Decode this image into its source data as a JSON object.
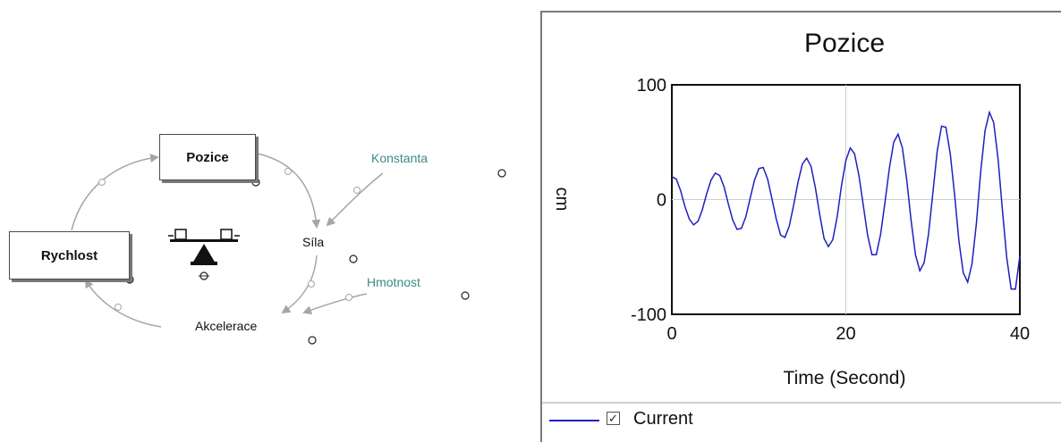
{
  "diagram": {
    "stocks": {
      "pozice": "Pozice",
      "rychlost": "Rychlost"
    },
    "variables": {
      "sila": "Síla",
      "akcelerace": "Akcelerace",
      "konstanta": "Konstanta",
      "hmotnost": "Hmotnost"
    },
    "colors": {
      "arrow": "#a6a6a6",
      "constant_text": "#3c8a8a"
    }
  },
  "graph": {
    "legend": {
      "label": "Current",
      "checked": true
    },
    "chart_data": {
      "type": "line",
      "title": "Pozice",
      "xlabel": "Time (Second)",
      "ylabel": "cm",
      "xlim": [
        0,
        40
      ],
      "ylim": [
        -100,
        100
      ],
      "xticks": [
        "0",
        "20",
        "40"
      ],
      "yticks": [
        "100",
        "0",
        "-100"
      ],
      "grid": "center-lines",
      "series": [
        {
          "name": "Current",
          "color": "#1f1fbf",
          "x": [
            0,
            0.5,
            1,
            1.5,
            2,
            2.5,
            3,
            3.5,
            4,
            4.5,
            5,
            5.5,
            6,
            6.5,
            7,
            7.5,
            8,
            8.5,
            9,
            9.5,
            10,
            10.5,
            11,
            11.5,
            12,
            12.5,
            13,
            13.5,
            14,
            14.5,
            15,
            15.5,
            16,
            16.5,
            17,
            17.5,
            18,
            18.5,
            19,
            19.5,
            20,
            20.5,
            21,
            21.5,
            22,
            22.5,
            23,
            23.5,
            24,
            24.5,
            25,
            25.5,
            26,
            26.5,
            27,
            27.5,
            28,
            28.5,
            29,
            29.5,
            30,
            30.5,
            31,
            31.5,
            32,
            32.5,
            33,
            33.5,
            34,
            34.5,
            35,
            35.5,
            36,
            36.5,
            37,
            37.5,
            38,
            38.5,
            39,
            39.5,
            40
          ],
          "y": [
            20,
            18,
            8,
            -6,
            -17,
            -22,
            -19,
            -9,
            5,
            17,
            23,
            21,
            11,
            -4,
            -18,
            -26,
            -25,
            -15,
            1,
            17,
            27,
            28,
            18,
            1,
            -17,
            -31,
            -33,
            -23,
            -5,
            15,
            31,
            36,
            29,
            10,
            -13,
            -34,
            -41,
            -35,
            -15,
            12,
            34,
            45,
            40,
            21,
            -5,
            -31,
            -48,
            -48,
            -30,
            -2,
            27,
            50,
            57,
            45,
            17,
            -18,
            -48,
            -62,
            -55,
            -30,
            6,
            42,
            64,
            63,
            40,
            4,
            -36,
            -64,
            -72,
            -56,
            -21,
            24,
            60,
            76,
            67,
            35,
            -9,
            -51,
            -78,
            -78,
            -49
          ]
        }
      ]
    }
  }
}
